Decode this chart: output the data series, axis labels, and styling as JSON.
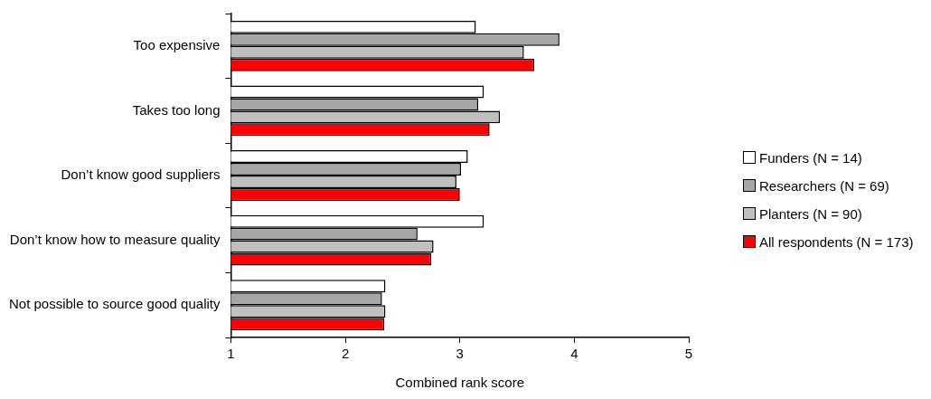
{
  "chart_data": {
    "type": "bar",
    "orientation": "horizontal",
    "xlabel": "Combined rank score",
    "categories": [
      "Too expensive",
      "Takes too long",
      "Don’t know good suppliers",
      "Don’t know how to measure quality",
      "Not possible to source good quality"
    ],
    "series": [
      {
        "name": "Funders (N = 14)",
        "color": "#ffffff",
        "values": [
          3.14,
          3.21,
          3.07,
          3.21,
          2.35
        ]
      },
      {
        "name": "Researchers (N = 69)",
        "color": "#a6a6a6",
        "values": [
          3.87,
          3.16,
          3.01,
          2.63,
          2.32
        ]
      },
      {
        "name": "Planters (N = 90)",
        "color": "#bfbfbf",
        "values": [
          3.56,
          3.35,
          2.97,
          2.77,
          2.35
        ]
      },
      {
        "name": "All respondents (N = 173)",
        "color": "#ff0000",
        "values": [
          3.65,
          3.26,
          3.0,
          2.75,
          2.34
        ]
      }
    ],
    "xlim": [
      1,
      5
    ],
    "xticks": [
      1,
      2,
      3,
      4,
      5
    ],
    "grid": false,
    "legend": "right"
  }
}
